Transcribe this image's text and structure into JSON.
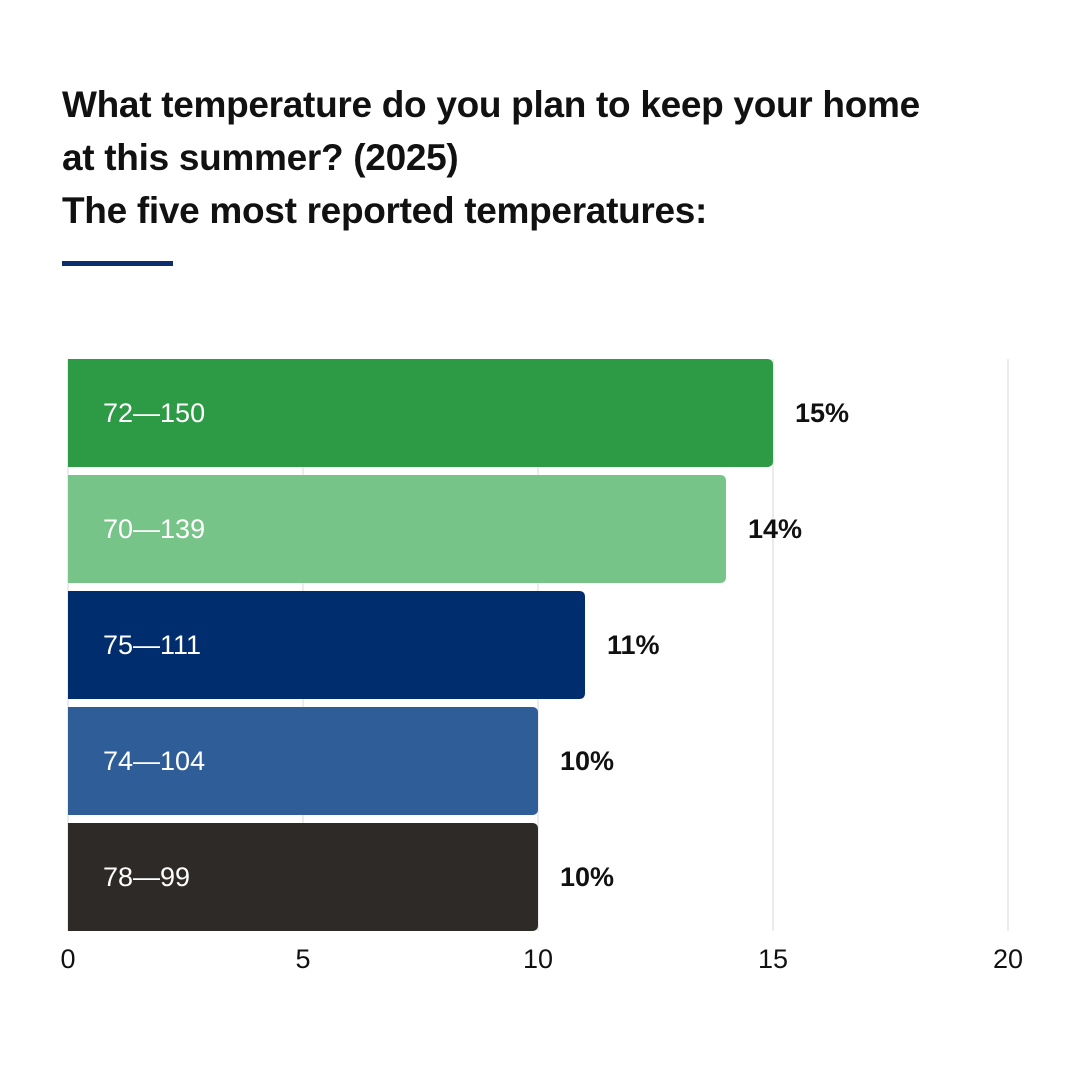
{
  "title_lines": [
    "What temperature do you plan to keep your home",
    "at this summer? (2025)",
    "The five most reported temperatures:"
  ],
  "accent_color": "#0d2e6e",
  "chart_data": {
    "type": "bar",
    "orientation": "horizontal",
    "categories": [
      "72—150",
      "70—139",
      "75—111",
      "74—104",
      "78—99"
    ],
    "values": [
      15,
      14,
      11,
      10,
      10
    ],
    "value_labels": [
      "15%",
      "14%",
      "11%",
      "10%",
      "10%"
    ],
    "colors": [
      "#2d9b45",
      "#77c489",
      "#002d6e",
      "#2f5d97",
      "#2e2a27"
    ],
    "xlim": [
      0,
      20
    ],
    "x_ticks": [
      "0",
      "5",
      "10",
      "15",
      "20"
    ],
    "grid": true,
    "title": "What temperature do you plan to keep your home at this summer? (2025) The five most reported temperatures:",
    "xlabel": "",
    "ylabel": ""
  }
}
